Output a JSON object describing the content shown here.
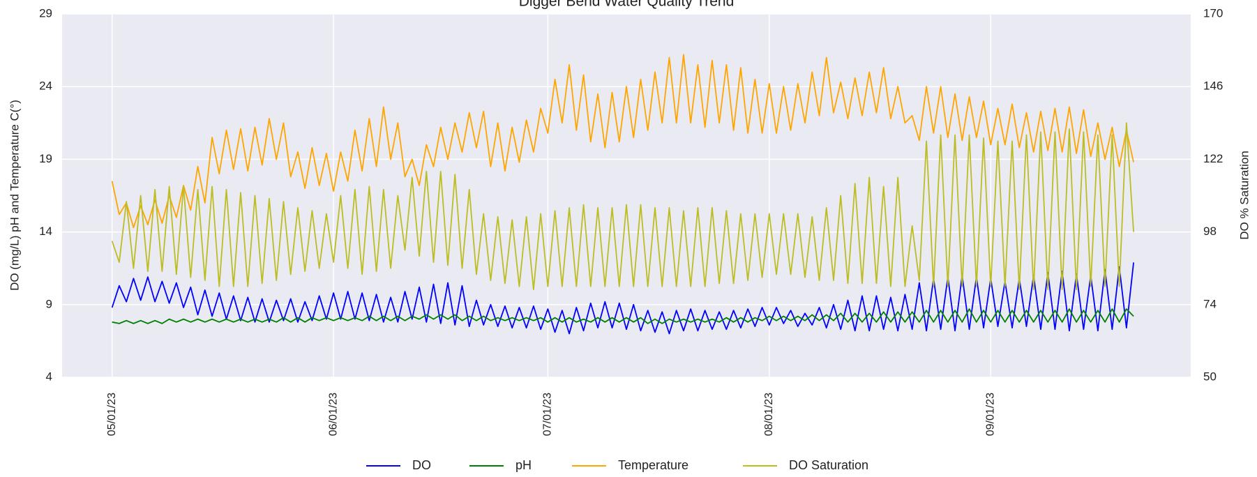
{
  "chart_data": {
    "type": "line",
    "title": "Digger Bend Water Quality Trend",
    "ylabel": "DO (mg/L) pH and Temperature C(°)",
    "y2label": "DO % Saturation",
    "xlim": [
      "04/24/23",
      "09/29/23"
    ],
    "xticks": [
      "05/01/23",
      "06/01/23",
      "07/01/23",
      "08/01/23",
      "09/01/23"
    ],
    "ylim": [
      4,
      29
    ],
    "yticks": [
      4,
      9,
      14,
      19,
      24,
      29
    ],
    "y2lim": [
      50,
      170
    ],
    "y2ticks": [
      50,
      74,
      98,
      122,
      146,
      170
    ],
    "grid": true,
    "legend": "bottom",
    "x": [
      "05/01/23",
      "05/02/23",
      "05/03/23",
      "05/04/23",
      "05/05/23",
      "05/06/23",
      "05/07/23",
      "05/08/23",
      "05/09/23",
      "05/10/23",
      "05/11/23",
      "05/12/23",
      "05/13/23",
      "05/14/23",
      "05/15/23",
      "05/16/23",
      "05/17/23",
      "05/18/23",
      "05/19/23",
      "05/20/23",
      "05/21/23",
      "05/22/23",
      "05/23/23",
      "05/24/23",
      "05/25/23",
      "05/26/23",
      "05/27/23",
      "05/28/23",
      "05/29/23",
      "05/30/23",
      "05/31/23",
      "06/01/23",
      "06/02/23",
      "06/03/23",
      "06/04/23",
      "06/05/23",
      "06/06/23",
      "06/07/23",
      "06/08/23",
      "06/09/23",
      "06/10/23",
      "06/11/23",
      "06/12/23",
      "06/13/23",
      "06/14/23",
      "06/15/23",
      "06/16/23",
      "06/17/23",
      "06/18/23",
      "06/19/23",
      "06/20/23",
      "06/21/23",
      "06/22/23",
      "06/23/23",
      "06/24/23",
      "06/25/23",
      "06/26/23",
      "06/27/23",
      "06/28/23",
      "06/29/23",
      "06/30/23",
      "07/01/23",
      "07/02/23",
      "07/03/23",
      "07/04/23",
      "07/05/23",
      "07/06/23",
      "07/07/23",
      "07/08/23",
      "07/09/23",
      "07/10/23",
      "07/11/23",
      "07/12/23",
      "07/13/23",
      "07/14/23",
      "07/15/23",
      "07/16/23",
      "07/17/23",
      "07/18/23",
      "07/19/23",
      "07/20/23",
      "07/21/23",
      "07/22/23",
      "07/23/23",
      "07/24/23",
      "07/25/23",
      "07/26/23",
      "07/27/23",
      "07/28/23",
      "07/29/23",
      "07/30/23",
      "07/31/23",
      "08/01/23",
      "08/02/23",
      "08/03/23",
      "08/04/23",
      "08/05/23",
      "08/06/23",
      "08/07/23",
      "08/08/23",
      "08/09/23",
      "08/10/23",
      "08/11/23",
      "08/12/23",
      "08/13/23",
      "08/14/23",
      "08/15/23",
      "08/16/23",
      "08/17/23",
      "08/18/23",
      "08/19/23",
      "08/20/23",
      "08/21/23",
      "08/22/23",
      "08/23/23",
      "08/24/23",
      "08/25/23",
      "08/26/23",
      "08/27/23",
      "08/28/23",
      "08/29/23",
      "08/30/23",
      "08/31/23",
      "09/01/23",
      "09/02/23",
      "09/03/23",
      "09/04/23",
      "09/05/23",
      "09/06/23",
      "09/07/23",
      "09/08/23",
      "09/09/23",
      "09/10/23",
      "09/11/23",
      "09/12/23",
      "09/13/23",
      "09/14/23",
      "09/15/23",
      "09/16/23",
      "09/17/23",
      "09/18/23",
      "09/19/23",
      "09/20/23",
      "09/21/23"
    ],
    "series": [
      {
        "name": "DO",
        "color": "#0000ff",
        "values": [
          8.8,
          10.3,
          9.2,
          10.8,
          9.3,
          10.9,
          9.2,
          10.6,
          9.1,
          10.5,
          8.8,
          10.2,
          8.3,
          10,
          8.2,
          9.8,
          8,
          9.6,
          7.9,
          9.5,
          7.8,
          9.4,
          7.8,
          9.3,
          7.9,
          9.4,
          7.8,
          9.2,
          7.9,
          9.6,
          8,
          9.8,
          8,
          9.9,
          8,
          9.8,
          7.9,
          9.7,
          7.8,
          9.5,
          7.8,
          9.9,
          8,
          10.2,
          7.8,
          10.4,
          7.7,
          10.5,
          7.6,
          10.3,
          7.5,
          9.3,
          7.6,
          9,
          7.5,
          8.9,
          7.4,
          8.8,
          7.4,
          8.9,
          7.3,
          8.7,
          7.1,
          8.6,
          7,
          8.8,
          7.2,
          9.1,
          7.4,
          9.2,
          7.4,
          9.1,
          7.3,
          9,
          7.2,
          8.6,
          7.1,
          8.5,
          7,
          8.6,
          7.2,
          8.7,
          7.2,
          8.6,
          7.3,
          8.5,
          7.3,
          8.6,
          7.4,
          8.7,
          7.5,
          8.8,
          7.6,
          8.8,
          7.7,
          8.6,
          7.5,
          8.4,
          7.6,
          8.8,
          7.4,
          9,
          7.3,
          9.3,
          7.2,
          9.6,
          7.2,
          9.6,
          7.3,
          9.5,
          7.2,
          9.7,
          7.3,
          10.5,
          7.2,
          10.8,
          7.3,
          10.9,
          7.2,
          11,
          7.3,
          10.9,
          7.4,
          10.8,
          7.5,
          10.6,
          7.4,
          10.8,
          7.5,
          11,
          7.3,
          11.2,
          7.3,
          11.3,
          7.2,
          11.1,
          7.3,
          11,
          7.2,
          11.4,
          7.3,
          11.6,
          7.4,
          11.9
        ]
      },
      {
        "name": "pH",
        "color": "#008000",
        "values": [
          7.8,
          7.7,
          7.9,
          7.7,
          7.9,
          7.7,
          7.9,
          7.7,
          8,
          7.8,
          8,
          7.8,
          8,
          7.8,
          8,
          7.8,
          8,
          7.8,
          8,
          7.8,
          8,
          7.8,
          8,
          7.8,
          8.1,
          7.8,
          8.1,
          7.8,
          8.1,
          7.9,
          8.1,
          7.9,
          8.1,
          7.9,
          8.1,
          7.9,
          8.2,
          7.9,
          8.2,
          7.9,
          8.2,
          7.9,
          8.2,
          8,
          8.3,
          8,
          8.3,
          8,
          8.3,
          7.9,
          8.2,
          7.9,
          8.2,
          7.9,
          8.1,
          7.9,
          8.1,
          7.9,
          8.1,
          7.9,
          8.1,
          7.8,
          8.1,
          7.8,
          8.1,
          7.8,
          8,
          7.8,
          8.1,
          7.8,
          8.1,
          7.8,
          8.1,
          7.8,
          8.1,
          7.7,
          8,
          7.7,
          8,
          7.8,
          8,
          7.8,
          8,
          7.8,
          8,
          7.8,
          8.1,
          7.8,
          8.1,
          7.8,
          8.1,
          7.9,
          8.2,
          7.9,
          8.2,
          7.9,
          8.2,
          7.9,
          8.3,
          7.9,
          8.3,
          7.9,
          8.4,
          7.8,
          8.4,
          7.8,
          8.4,
          7.8,
          8.5,
          7.8,
          8.5,
          7.8,
          8.5,
          7.8,
          8.6,
          7.8,
          8.6,
          7.8,
          8.6,
          7.8,
          8.7,
          7.8,
          8.6,
          7.8,
          8.6,
          7.8,
          8.6,
          7.8,
          8.6,
          7.8,
          8.6,
          7.8,
          8.6,
          7.8,
          8.7,
          7.8,
          8.6,
          7.8,
          8.6,
          7.8,
          8.7,
          7.8,
          8.7,
          8.2
        ]
      },
      {
        "name": "Temperature",
        "color": "#ffa500",
        "values": [
          17.5,
          15.2,
          16,
          14.3,
          15.8,
          14.5,
          16.2,
          14.6,
          16.5,
          15,
          17.2,
          15.5,
          18.5,
          16,
          20.5,
          18,
          21,
          18.3,
          21.1,
          18.2,
          21.2,
          18.6,
          21.8,
          19,
          21.5,
          17.8,
          19.5,
          17,
          19.8,
          17.2,
          19.4,
          16.8,
          19.5,
          17.5,
          21,
          18.2,
          21.8,
          18.5,
          22.6,
          19,
          21.5,
          17.8,
          19,
          17.2,
          20,
          18.5,
          21.2,
          19,
          21.5,
          19.5,
          22.2,
          19.8,
          22.3,
          18.5,
          21.5,
          18.2,
          21.2,
          18.8,
          21.7,
          19.5,
          22.5,
          20.8,
          24.5,
          21.5,
          25.5,
          21,
          24.8,
          20.2,
          23.5,
          19.8,
          23.6,
          20.2,
          24,
          20.5,
          24.5,
          21,
          25,
          21.5,
          26,
          21.5,
          26.2,
          21.5,
          25.5,
          21.2,
          25.8,
          21.5,
          25.5,
          21,
          25.3,
          20.8,
          24.5,
          20.8,
          24.2,
          20.8,
          24,
          21,
          24.2,
          21.5,
          25,
          22,
          26,
          22.2,
          24.3,
          21.8,
          24.6,
          22,
          25,
          22.2,
          25.3,
          21.8,
          24,
          21.5,
          22,
          20.3,
          24,
          20.8,
          24,
          20.5,
          23.5,
          20.3,
          23.3,
          20.5,
          23,
          20,
          22.5,
          20,
          22.8,
          19.8,
          22.2,
          19.5,
          22.3,
          19.6,
          22.5,
          19.5,
          22.6,
          19.4,
          22.4,
          19.2,
          21.5,
          19,
          21.2,
          18.5,
          21,
          18.8
        ]
      },
      {
        "name": "DO Saturation",
        "color": "#bcbd22",
        "axis": "y2",
        "values": [
          95,
          88,
          108,
          86,
          110,
          85,
          112,
          85,
          113,
          84,
          113,
          83,
          112,
          82,
          113,
          80,
          112,
          80,
          111,
          80,
          110,
          81,
          109,
          82,
          108,
          84,
          106,
          85,
          105,
          86,
          104,
          88,
          110,
          86,
          112,
          84,
          113,
          85,
          112,
          86,
          110,
          92,
          116,
          90,
          118,
          88,
          118,
          87,
          117,
          86,
          112,
          84,
          104,
          82,
          103,
          81,
          102,
          80,
          103,
          79,
          104,
          80,
          105,
          80,
          106,
          80,
          107,
          80,
          106,
          80,
          106,
          80,
          107,
          80,
          107,
          80,
          106,
          80,
          106,
          80,
          105,
          80,
          106,
          80,
          106,
          81,
          105,
          81,
          104,
          82,
          104,
          83,
          104,
          84,
          104,
          84,
          104,
          83,
          103,
          82,
          106,
          82,
          110,
          81,
          114,
          81,
          116,
          81,
          113,
          80,
          116,
          80,
          100,
          82,
          128,
          80,
          130,
          80,
          130,
          80,
          130,
          80,
          129,
          80,
          128,
          80,
          128,
          79,
          130,
          79,
          131,
          79,
          131,
          79,
          132,
          79,
          131,
          80,
          130,
          80,
          130,
          80,
          134,
          98
        ]
      }
    ]
  }
}
